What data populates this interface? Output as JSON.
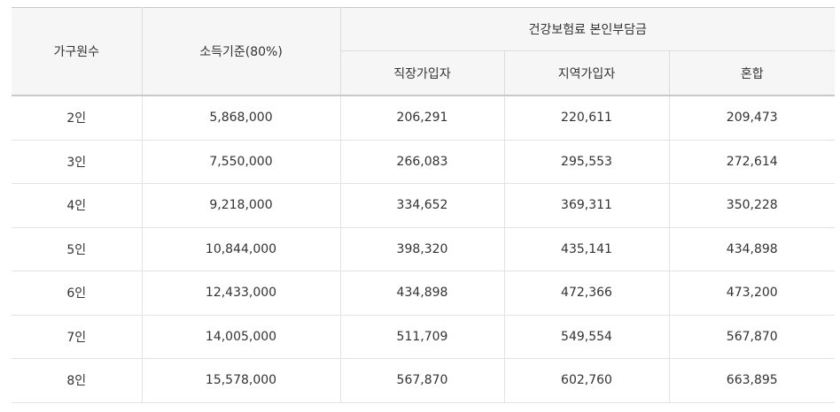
{
  "table": {
    "headers": {
      "household": "가구원수",
      "income": "소득기준(80%)",
      "group": "건강보험료 본인부담금",
      "employee": "직장가입자",
      "regional": "지역가입자",
      "mixed": "혼합"
    },
    "rows": [
      {
        "household": "2인",
        "income": "5,868,000",
        "employee": "206,291",
        "regional": "220,611",
        "mixed": "209,473"
      },
      {
        "household": "3인",
        "income": "7,550,000",
        "employee": "266,083",
        "regional": "295,553",
        "mixed": "272,614"
      },
      {
        "household": "4인",
        "income": "9,218,000",
        "employee": "334,652",
        "regional": "369,311",
        "mixed": "350,228"
      },
      {
        "household": "5인",
        "income": "10,844,000",
        "employee": "398,320",
        "regional": "435,141",
        "mixed": "434,898"
      },
      {
        "household": "6인",
        "income": "12,433,000",
        "employee": "434,898",
        "regional": "472,366",
        "mixed": "473,200"
      },
      {
        "household": "7인",
        "income": "14,005,000",
        "employee": "511,709",
        "regional": "549,554",
        "mixed": "567,870"
      },
      {
        "household": "8인",
        "income": "15,578,000",
        "employee": "567,870",
        "regional": "602,760",
        "mixed": "663,895"
      }
    ]
  }
}
